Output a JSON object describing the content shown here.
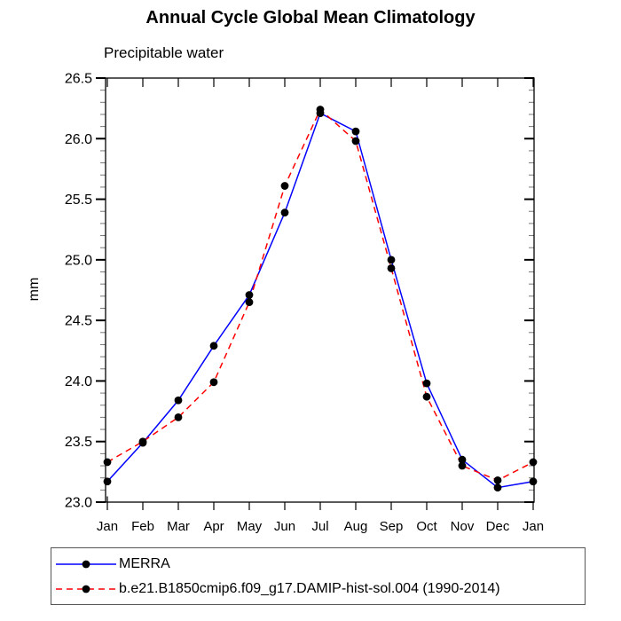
{
  "chart_data": {
    "type": "line",
    "title": "Annual Cycle Global Mean Climatology",
    "subtitle": "Precipitable water",
    "ylabel": "mm",
    "xlabel": "",
    "categories": [
      "Jan",
      "Feb",
      "Mar",
      "Apr",
      "May",
      "Jun",
      "Jul",
      "Aug",
      "Sep",
      "Oct",
      "Nov",
      "Dec",
      "Jan"
    ],
    "ylim": [
      23.0,
      26.5
    ],
    "ytick_step": 0.5,
    "yminor_step": 0.1,
    "ytick_labels": [
      "23.0",
      "23.5",
      "24.0",
      "24.5",
      "25.0",
      "25.5",
      "26.0",
      "26.5"
    ],
    "grid": false,
    "legend_position": "bottom",
    "marker_color": "#000000",
    "series": [
      {
        "name": "MERRA",
        "color": "#0000ff",
        "style": "solid",
        "values": [
          23.17,
          23.49,
          23.84,
          24.29,
          24.71,
          25.39,
          26.21,
          26.06,
          25.0,
          23.98,
          23.35,
          23.12,
          23.17
        ]
      },
      {
        "name": "b.e21.B1850cmip6.f09_g17.DAMIP-hist-sol.004 (1990-2014)",
        "color": "#ff0000",
        "style": "dashed",
        "values": [
          23.33,
          23.5,
          23.7,
          23.99,
          24.65,
          25.61,
          26.24,
          25.98,
          24.93,
          23.87,
          23.3,
          23.18,
          23.33
        ]
      }
    ]
  },
  "colors": {
    "axis": "#000000",
    "minor_tick": "#777777",
    "background": "#ffffff",
    "legend_border": "#555555"
  }
}
